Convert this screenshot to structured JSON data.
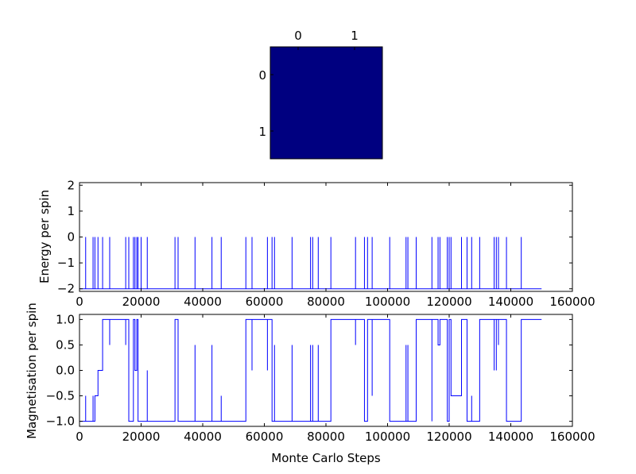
{
  "chart_data": [
    {
      "type": "heatmap",
      "rows": 2,
      "cols": 2,
      "values": [
        [
          0,
          0
        ],
        [
          0,
          0
        ]
      ],
      "cell_color": "#000080",
      "x_ticks": [
        "0",
        "1"
      ],
      "y_ticks": [
        "0",
        "1"
      ]
    },
    {
      "type": "line",
      "ylabel": "Energy per spin",
      "xlim": [
        0,
        160000
      ],
      "ylim": [
        -2.1,
        2.1
      ],
      "x_ticks": [
        "0",
        "20000",
        "40000",
        "60000",
        "80000",
        "100000",
        "120000",
        "140000",
        "160000"
      ],
      "y_ticks": [
        "−2",
        "−1",
        "0",
        "1",
        "2"
      ],
      "x_tick_values": [
        0,
        20000,
        40000,
        60000,
        80000,
        100000,
        120000,
        140000,
        160000
      ],
      "y_tick_values": [
        -2,
        -1,
        0,
        1,
        2
      ],
      "color": "#0000ff",
      "baseline": -2,
      "x_end": 150000,
      "spikes": [
        {
          "x": 2000,
          "y": 0
        },
        {
          "x": 4400,
          "y": 0
        },
        {
          "x": 5000,
          "y": 0
        },
        {
          "x": 6000,
          "y": 0
        },
        {
          "x": 7500,
          "y": 0
        },
        {
          "x": 9800,
          "y": 0
        },
        {
          "x": 15000,
          "y": 0
        },
        {
          "x": 16000,
          "y": 0
        },
        {
          "x": 17500,
          "y": 0
        },
        {
          "x": 18000,
          "y": 0
        },
        {
          "x": 18600,
          "y": 0
        },
        {
          "x": 19000,
          "y": 0
        },
        {
          "x": 20000,
          "y": 0
        },
        {
          "x": 22000,
          "y": 0
        },
        {
          "x": 31000,
          "y": 0
        },
        {
          "x": 32000,
          "y": 0
        },
        {
          "x": 37500,
          "y": 0
        },
        {
          "x": 43000,
          "y": 0
        },
        {
          "x": 46000,
          "y": 0
        },
        {
          "x": 54000,
          "y": 0
        },
        {
          "x": 56000,
          "y": 0
        },
        {
          "x": 61000,
          "y": 0
        },
        {
          "x": 62500,
          "y": 0
        },
        {
          "x": 63300,
          "y": 0
        },
        {
          "x": 69000,
          "y": 0
        },
        {
          "x": 75000,
          "y": 0
        },
        {
          "x": 75700,
          "y": 0
        },
        {
          "x": 77500,
          "y": 0
        },
        {
          "x": 81600,
          "y": 0
        },
        {
          "x": 89600,
          "y": 0
        },
        {
          "x": 92500,
          "y": 0
        },
        {
          "x": 93500,
          "y": 0
        },
        {
          "x": 95000,
          "y": 0
        },
        {
          "x": 100700,
          "y": 0
        },
        {
          "x": 106000,
          "y": 0
        },
        {
          "x": 106600,
          "y": 0
        },
        {
          "x": 109300,
          "y": 0
        },
        {
          "x": 114400,
          "y": 0
        },
        {
          "x": 116400,
          "y": 0
        },
        {
          "x": 117000,
          "y": 0
        },
        {
          "x": 119400,
          "y": 0
        },
        {
          "x": 120000,
          "y": 0
        },
        {
          "x": 120600,
          "y": 0
        },
        {
          "x": 124000,
          "y": 0
        },
        {
          "x": 125800,
          "y": 0
        },
        {
          "x": 127300,
          "y": 0
        },
        {
          "x": 129900,
          "y": 0
        },
        {
          "x": 134600,
          "y": 0
        },
        {
          "x": 135300,
          "y": 0
        },
        {
          "x": 136000,
          "y": 0
        },
        {
          "x": 138600,
          "y": 0
        },
        {
          "x": 143400,
          "y": 0
        }
      ]
    },
    {
      "type": "line",
      "xlabel": "Monte Carlo Steps",
      "ylabel": "Magnetisation per spin",
      "xlim": [
        0,
        160000
      ],
      "ylim": [
        -1.1,
        1.1
      ],
      "x_ticks": [
        "0",
        "20000",
        "40000",
        "60000",
        "80000",
        "100000",
        "120000",
        "140000",
        "160000"
      ],
      "y_ticks": [
        "−1.0",
        "−0.5",
        "0.0",
        "0.5",
        "1.0"
      ],
      "x_tick_values": [
        0,
        20000,
        40000,
        60000,
        80000,
        100000,
        120000,
        140000,
        160000
      ],
      "y_tick_values": [
        -1.0,
        -0.5,
        0.0,
        0.5,
        1.0
      ],
      "color": "#0000ff",
      "series": [
        {
          "x": [
            0,
            2000,
            2000,
            2000,
            4400,
            4400,
            4400,
            5000,
            5000,
            6000,
            6000,
            7500,
            7500,
            9800,
            9800,
            9800,
            15000,
            15000,
            15000,
            16000,
            16000,
            17500,
            17500,
            18000,
            18000,
            18600,
            18600,
            18600,
            19000,
            19000,
            20000,
            20000,
            22000,
            22000,
            22000,
            31000,
            31000,
            32000,
            32000,
            37500,
            37500,
            37500,
            43000,
            43000,
            43000,
            46000,
            46000,
            46000,
            54000,
            54000,
            56000,
            56000,
            56000,
            61000,
            61000,
            61000,
            62500,
            62500,
            63300,
            63300,
            63300,
            69000,
            69000,
            69000,
            75000,
            75000,
            75000,
            75700,
            75700,
            75700,
            77500,
            77500,
            77500,
            81600,
            81600,
            89600,
            89600,
            89600,
            92500,
            92500,
            93500,
            93500,
            95000,
            95000,
            95000,
            100700,
            100700,
            106000,
            106000,
            106000,
            106600,
            106600,
            106600,
            109300,
            109300,
            114400,
            114400,
            114400,
            116400,
            116400,
            117000,
            117000,
            117000,
            119400,
            119400,
            120000,
            120000,
            120600,
            120600,
            124000,
            124000,
            124000,
            125800,
            125800,
            127300,
            127300,
            127300,
            129900,
            129900,
            134600,
            134600,
            134600,
            135300,
            135300,
            135300,
            136000,
            136000,
            136000,
            138600,
            138600,
            138600,
            143400,
            143400,
            150000
          ],
          "y": [
            -1,
            -1,
            -0.5,
            -1,
            -1,
            -0.5,
            -1,
            -1,
            -0.5,
            -0.5,
            0,
            0,
            1,
            1,
            0.5,
            1,
            1,
            0.5,
            1,
            1,
            -1,
            -1,
            1,
            1,
            0,
            0,
            0.5,
            1,
            1,
            -1,
            -1,
            -1,
            -1,
            0,
            -1,
            -1,
            1,
            1,
            -1,
            -1,
            0.5,
            -1,
            -1,
            0.5,
            -1,
            -1,
            -0.5,
            -1,
            -1,
            1,
            1,
            0,
            1,
            1,
            0,
            1,
            1,
            -1,
            -1,
            0.5,
            -1,
            -1,
            0.5,
            -1,
            -1,
            0.5,
            -1,
            -1,
            0.5,
            -1,
            -1,
            0.5,
            -1,
            -1,
            1,
            1,
            0.5,
            1,
            1,
            -1,
            -1,
            1,
            1,
            -0.5,
            1,
            1,
            -1,
            -1,
            0.5,
            -1,
            -1,
            0.5,
            -1,
            -1,
            1,
            1,
            -1,
            1,
            1,
            0.5,
            0.5,
            1,
            1,
            1,
            -1,
            -1,
            1,
            1,
            -0.5,
            -0.5,
            1,
            1,
            1,
            -1,
            -1,
            -0.5,
            -1,
            -1,
            1,
            1,
            0,
            1,
            1,
            0,
            1,
            1,
            0.5,
            1,
            1,
            -0.5,
            -1,
            -1,
            1,
            1
          ]
        }
      ]
    }
  ]
}
